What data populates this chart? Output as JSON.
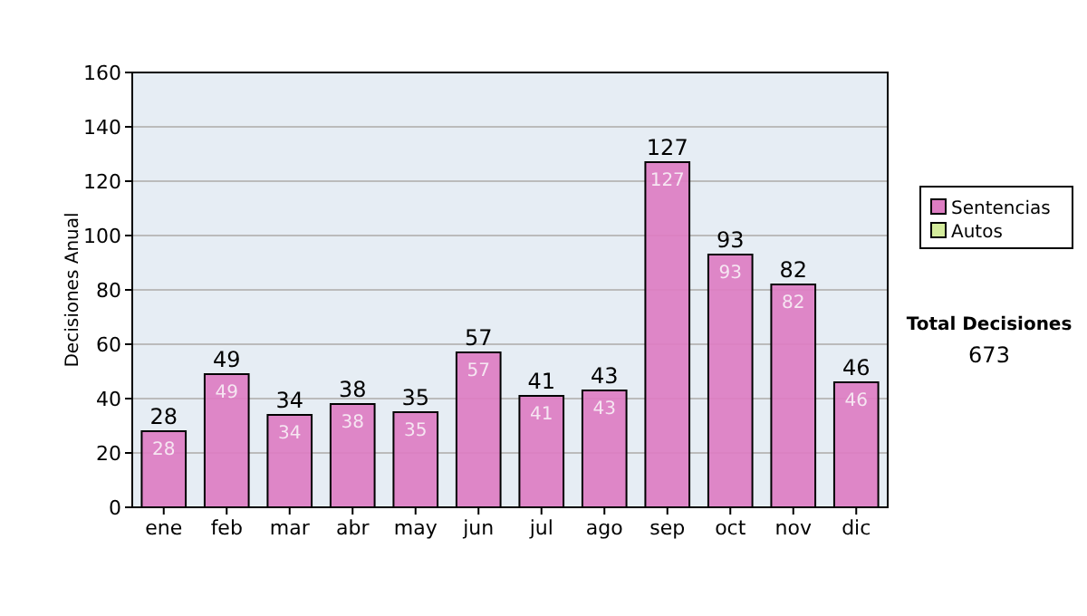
{
  "chart_data": {
    "type": "bar",
    "ylabel": "Decisiones Anual",
    "categories": [
      "ene",
      "feb",
      "mar",
      "abr",
      "may",
      "jun",
      "jul",
      "ago",
      "sep",
      "oct",
      "nov",
      "dic"
    ],
    "series": [
      {
        "name": "Sentencias",
        "color": "#dd7dc2",
        "values": [
          28,
          49,
          34,
          38,
          35,
          57,
          41,
          43,
          127,
          93,
          82,
          46
        ],
        "value_labels": [
          "28",
          "49",
          "34",
          "38",
          "35",
          "57",
          "41",
          "43",
          "127",
          "93",
          "82",
          "46"
        ]
      },
      {
        "name": "Autos",
        "color": "#d4ec9c",
        "values": [
          0,
          0,
          0,
          0,
          0,
          0,
          0,
          0,
          0,
          0,
          0,
          0
        ]
      }
    ],
    "stacked": true,
    "totals": [
      "28",
      "49",
      "34",
      "38",
      "35",
      "57",
      "41",
      "43",
      "127",
      "93",
      "82",
      "46"
    ],
    "ylim": [
      0,
      160
    ],
    "yticks": [
      0,
      20,
      40,
      60,
      80,
      100,
      120,
      140,
      160
    ],
    "grid": "y",
    "legend": "right",
    "annotations": [
      "Total Decisiones",
      "673"
    ]
  }
}
